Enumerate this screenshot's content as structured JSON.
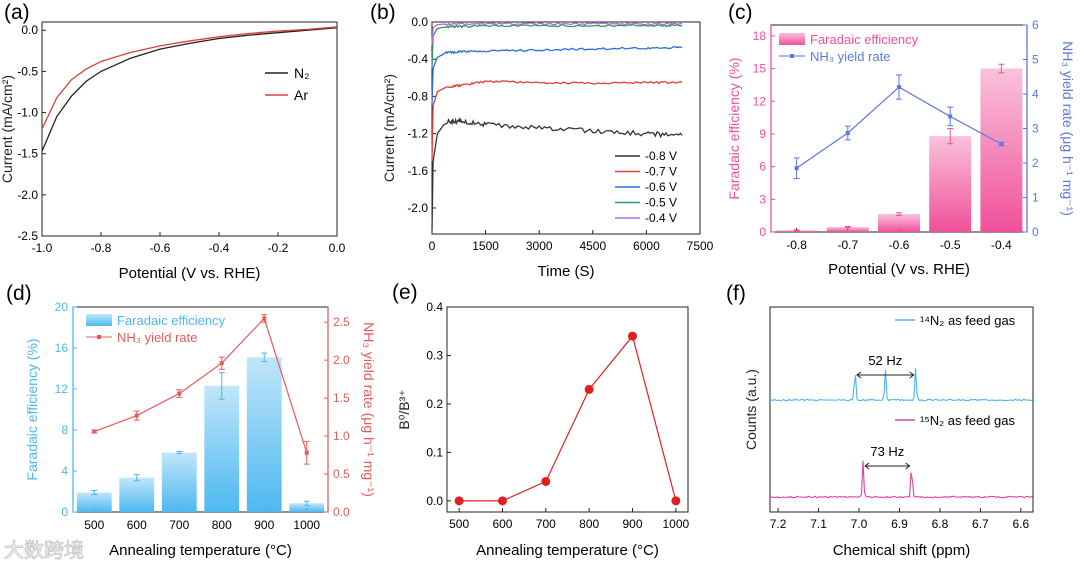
{
  "watermark": "大数跨境",
  "chart_data": [
    {
      "panel": "(a)",
      "type": "line",
      "xlabel": "Potential (V vs. RHE)",
      "ylabel": "Current (mA/cm²)",
      "xlim": [
        -1.0,
        0.0
      ],
      "ylim": [
        -2.5,
        0.1
      ],
      "xticks": [
        "-1.0",
        "-0.8",
        "-0.6",
        "-0.4",
        "-0.2",
        "0.0"
      ],
      "yticks": [
        "-2.5",
        "-2.0",
        "-1.5",
        "-1.0",
        "-0.5",
        "0.0"
      ],
      "series": [
        {
          "name": "N₂",
          "color": "#222222",
          "x": [
            -1.0,
            -0.95,
            -0.9,
            -0.85,
            -0.8,
            -0.7,
            -0.6,
            -0.5,
            -0.4,
            -0.3,
            -0.2,
            -0.1,
            0.0
          ],
          "y": [
            -1.47,
            -1.05,
            -0.8,
            -0.62,
            -0.5,
            -0.34,
            -0.23,
            -0.16,
            -0.1,
            -0.06,
            -0.03,
            0.0,
            0.03
          ]
        },
        {
          "name": "Ar",
          "color": "#e0403a",
          "x": [
            -1.0,
            -0.95,
            -0.9,
            -0.85,
            -0.8,
            -0.7,
            -0.6,
            -0.5,
            -0.4,
            -0.3,
            -0.2,
            -0.1,
            0.0
          ],
          "y": [
            -1.2,
            -0.82,
            -0.6,
            -0.47,
            -0.38,
            -0.27,
            -0.19,
            -0.13,
            -0.08,
            -0.04,
            -0.01,
            0.01,
            0.04
          ]
        }
      ]
    },
    {
      "panel": "(b)",
      "type": "line",
      "xlabel": "Time (S)",
      "ylabel": "Current (mA/cm²)",
      "xlim": [
        0,
        7500
      ],
      "ylim": [
        -2.28,
        0.0
      ],
      "xticks": [
        "0",
        "1500",
        "3000",
        "4500",
        "6000",
        "7500"
      ],
      "yticks": [
        "-2.0",
        "-1.6",
        "-1.2",
        "-0.8",
        "-0.4",
        "0.0"
      ],
      "series": [
        {
          "name": "-0.8 V",
          "color": "#333333",
          "x": [
            0,
            30,
            150,
            400,
            800,
            1500,
            3000,
            4500,
            6000,
            7000
          ],
          "y": [
            -2.25,
            -1.5,
            -1.2,
            -1.07,
            -1.06,
            -1.1,
            -1.14,
            -1.17,
            -1.2,
            -1.22
          ]
        },
        {
          "name": "-0.7 V",
          "color": "#e0403a",
          "x": [
            0,
            30,
            150,
            400,
            800,
            1500,
            3000,
            4500,
            6000,
            7000
          ],
          "y": [
            -1.5,
            -0.9,
            -0.75,
            -0.7,
            -0.68,
            -0.64,
            -0.65,
            -0.66,
            -0.65,
            -0.65
          ]
        },
        {
          "name": "-0.6 V",
          "color": "#2b6fd6",
          "x": [
            0,
            30,
            150,
            400,
            800,
            1500,
            3000,
            4500,
            6000,
            7000
          ],
          "y": [
            -0.9,
            -0.5,
            -0.38,
            -0.33,
            -0.32,
            -0.31,
            -0.3,
            -0.29,
            -0.28,
            -0.27
          ]
        },
        {
          "name": "-0.5 V",
          "color": "#2a9a5a",
          "x": [
            0,
            30,
            150,
            400,
            800,
            1500,
            3000,
            4500,
            6000,
            7000
          ],
          "y": [
            -0.5,
            -0.15,
            -0.07,
            -0.05,
            -0.05,
            -0.04,
            -0.04,
            -0.04,
            -0.04,
            -0.04
          ]
        },
        {
          "name": "-0.4 V",
          "color": "#b070d8",
          "x": [
            0,
            30,
            150,
            400,
            800,
            1500,
            3000,
            4500,
            6000,
            7000
          ],
          "y": [
            -0.25,
            -0.06,
            -0.03,
            -0.02,
            -0.02,
            -0.02,
            -0.02,
            -0.02,
            -0.02,
            -0.02
          ]
        }
      ]
    },
    {
      "panel": "(c)",
      "type": "bar",
      "xlabel": "Potential (V vs. RHE)",
      "ylabel": "Faradaic efficiency (%)",
      "ylabel2": "NH₃ yield rate (μg h⁻¹ mg⁻¹)",
      "categories": [
        "-0.8",
        "-0.7",
        "-0.6",
        "-0.5",
        "-0.4"
      ],
      "ylim": [
        0,
        19
      ],
      "ylim2": [
        0,
        6
      ],
      "yticks": [
        "0",
        "3",
        "6",
        "9",
        "12",
        "15",
        "18"
      ],
      "yticks2": [
        "0",
        "1",
        "2",
        "3",
        "4",
        "5",
        "6"
      ],
      "series": [
        {
          "name": "Faradaic efficiency",
          "color": "#f0509a",
          "values": [
            0.15,
            0.45,
            1.65,
            8.8,
            15.0
          ],
          "err": [
            0.05,
            0.05,
            0.12,
            0.7,
            0.4
          ]
        },
        {
          "name": "NH₃ yield rate",
          "color": "#5b78e0",
          "values": [
            1.85,
            2.87,
            4.2,
            3.35,
            2.55
          ],
          "err": [
            0.3,
            0.2,
            0.35,
            0.27,
            0.05
          ]
        }
      ]
    },
    {
      "panel": "(d)",
      "type": "bar",
      "xlabel": "Annealing temperature (°C)",
      "ylabel": "Faradaic efficiency (%)",
      "ylabel2": "NH₃ yield rate (μg h⁻¹ mg⁻¹)",
      "categories": [
        "500",
        "600",
        "700",
        "800",
        "900",
        "1000"
      ],
      "ylim": [
        0,
        20
      ],
      "ylim2": [
        0,
        2.7
      ],
      "yticks": [
        "0",
        "4",
        "8",
        "12",
        "16",
        "20"
      ],
      "yticks2": [
        "0.0",
        "0.5",
        "1.0",
        "1.5",
        "2.0",
        "2.5"
      ],
      "series": [
        {
          "name": "Faradaic efficiency",
          "color": "#4db8f0",
          "values": [
            1.9,
            3.35,
            5.8,
            12.3,
            15.1,
            0.85
          ],
          "err": [
            0.2,
            0.3,
            0.1,
            1.3,
            0.4,
            0.2
          ]
        },
        {
          "name": "NH₃ yield rate",
          "color": "#e85a5a",
          "values": [
            1.06,
            1.27,
            1.56,
            1.96,
            2.55,
            0.78
          ],
          "err": [
            0.02,
            0.06,
            0.05,
            0.08,
            0.05,
            0.15
          ]
        }
      ]
    },
    {
      "panel": "(e)",
      "type": "scatter",
      "xlabel": "Annealing temperature (°C)",
      "ylabel": "B⁰/B³⁺",
      "xlim": [
        472,
        1028
      ],
      "ylim": [
        -0.023,
        0.4
      ],
      "xticks": [
        "500",
        "600",
        "700",
        "800",
        "900",
        "1000"
      ],
      "yticks": [
        "0.0",
        "0.1",
        "0.2",
        "0.3",
        "0.4"
      ],
      "series": [
        {
          "name": "B0/B3+",
          "color": "#e02020",
          "x": [
            500,
            600,
            700,
            800,
            900,
            1000
          ],
          "y": [
            0.0,
            0.0,
            0.04,
            0.23,
            0.34,
            0.0
          ]
        }
      ]
    },
    {
      "panel": "(f)",
      "type": "line",
      "xlabel": "Chemical shift (ppm)",
      "ylabel": "Counts (a.u.)",
      "xlim": [
        7.22,
        6.57
      ],
      "xticks": [
        "7.2",
        "7.1",
        "7.0",
        "6.9",
        "6.8",
        "6.7",
        "6.6"
      ],
      "series": [
        {
          "name": "¹⁴N₂ as feed gas",
          "color": "#4ab8e8",
          "peaks": [
            7.01,
            6.935,
            6.86
          ],
          "annotation": "52 Hz"
        },
        {
          "name": "¹⁵N₂ as feed gas",
          "color": "#e040a0",
          "peaks": [
            6.99,
            6.87
          ],
          "annotation": "73 Hz"
        }
      ]
    }
  ]
}
